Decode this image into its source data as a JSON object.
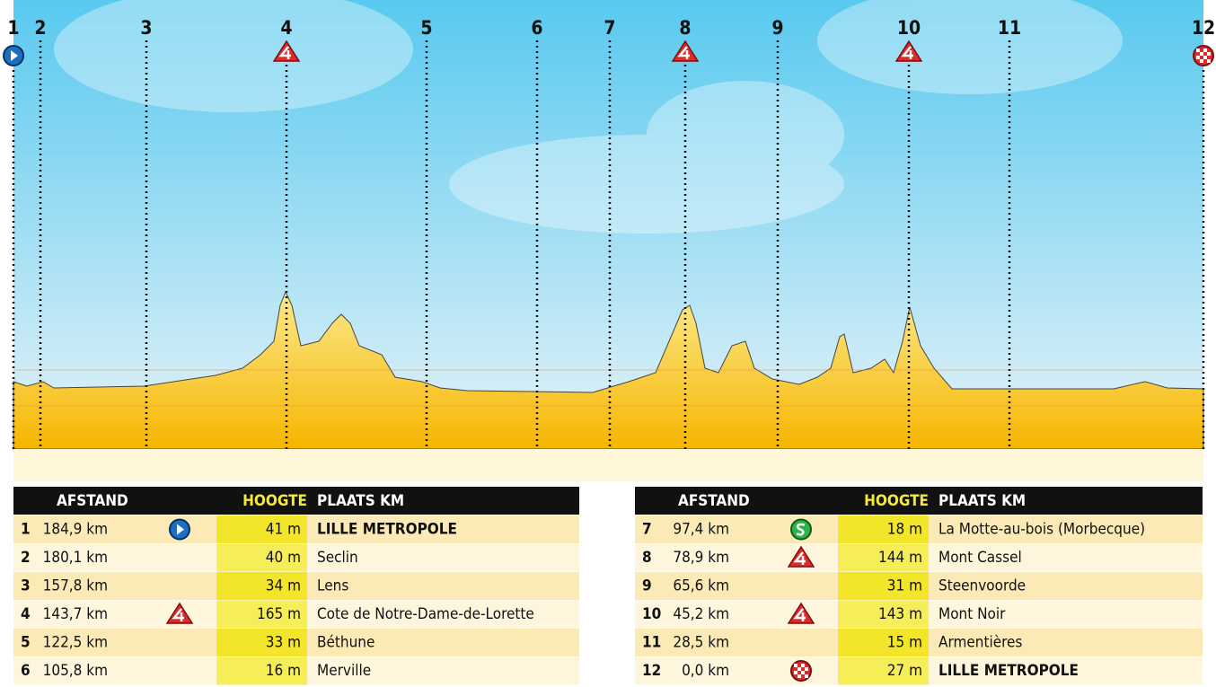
{
  "markers": [
    "1",
    "2",
    "3",
    "4",
    "5",
    "6",
    "7",
    "8",
    "9",
    "10",
    "11",
    "12"
  ],
  "tables": [
    {
      "headers": [
        "AFSTAND",
        "HOOGTE",
        "PLAATS KM"
      ],
      "rows": [
        [
          "1",
          "184,9 km",
          "41 m",
          "LILLE METROPOLE"
        ],
        [
          "2",
          "180,1 km",
          "40 m",
          "Seclin"
        ],
        [
          "3",
          "157,8 km",
          "34 m",
          "Lens"
        ],
        [
          "4",
          "143,7 km",
          "165 m",
          "Cote de Notre-Dame-de-Lorette"
        ],
        [
          "5",
          "122,5 km",
          "33 m",
          "Béthune"
        ],
        [
          "6",
          "105,8 km",
          "16 m",
          "Merville"
        ]
      ]
    },
    {
      "headers": [
        "AFSTAND",
        "HOOGTE",
        "PLAATS KM"
      ],
      "rows": [
        [
          "7",
          "97,4 km",
          "18 m",
          "La Motte-au-bois (Morbecque)"
        ],
        [
          "8",
          "78,9 km",
          "144 m",
          "Mont Cassel"
        ],
        [
          "9",
          "65,6 km",
          "31 m",
          "Steenvoorde"
        ],
        [
          "10",
          "45,2 km",
          "143 m",
          "Mont Noir"
        ],
        [
          "11",
          "28,5 km",
          "15 m",
          "Armentières"
        ],
        [
          "12",
          "0,0 km",
          "27 m",
          "LILLE METROPOLE"
        ]
      ]
    }
  ]
}
